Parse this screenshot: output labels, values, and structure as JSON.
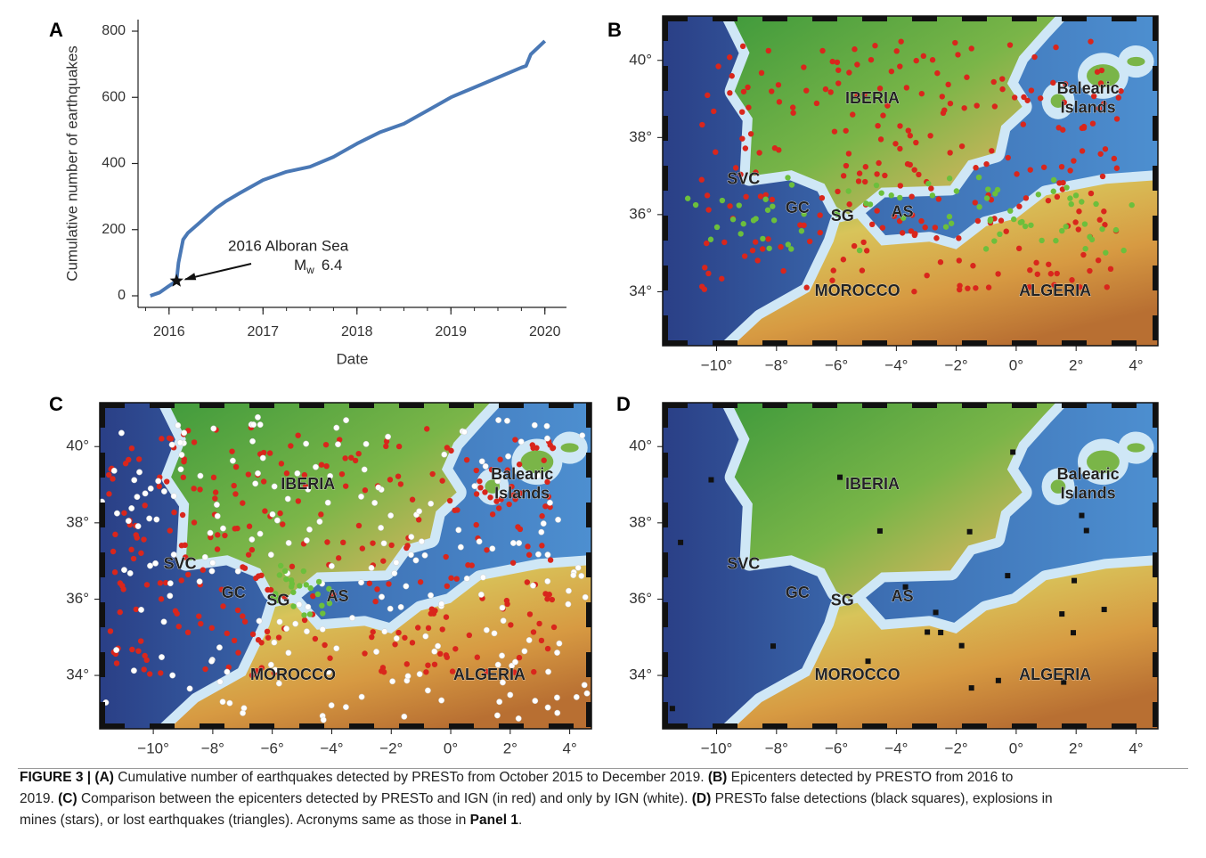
{
  "chart_data": {
    "type": "line",
    "panel": "A",
    "x": [
      2015.8,
      2015.9,
      2016.0,
      2016.08,
      2016.1,
      2016.15,
      2016.2,
      2016.3,
      2016.4,
      2016.5,
      2016.6,
      2016.75,
      2017.0,
      2017.25,
      2017.5,
      2017.75,
      2018.0,
      2018.25,
      2018.5,
      2018.75,
      2019.0,
      2019.25,
      2019.5,
      2019.75,
      2019.8,
      2019.85,
      2020.0
    ],
    "values": [
      0,
      10,
      30,
      45,
      100,
      170,
      190,
      215,
      240,
      265,
      285,
      310,
      350,
      375,
      390,
      420,
      460,
      495,
      520,
      560,
      600,
      630,
      660,
      690,
      695,
      730,
      770
    ],
    "color": "#4a78b5",
    "xlabel": "Date",
    "ylabel": "Cumulative number of earthquakes",
    "xlim": [
      2015.67,
      2020.23
    ],
    "ylim": [
      -35,
      835
    ],
    "xticks": [
      2016,
      2017,
      2018,
      2019,
      2020
    ],
    "yticks": [
      0,
      200,
      400,
      600,
      800
    ],
    "annotation": {
      "line1": "2016 Alboran Sea",
      "m": "M",
      "sub": "w",
      "mag": "6.4",
      "x": 2016.08,
      "y": 45
    }
  },
  "maps": {
    "panels": [
      "B",
      "C",
      "D"
    ],
    "xlim": [
      -11.8,
      4.73
    ],
    "ylim": [
      32.6,
      41.15
    ],
    "xticks": [
      {
        "value": -10,
        "label": "−10°"
      },
      {
        "value": -8,
        "label": "−8°"
      },
      {
        "value": -6,
        "label": "−6°"
      },
      {
        "value": -4,
        "label": "−4°"
      },
      {
        "value": -2,
        "label": "−2°"
      },
      {
        "value": 0,
        "label": "0°"
      },
      {
        "value": 2,
        "label": "2°"
      },
      {
        "value": 4,
        "label": "4°"
      }
    ],
    "yticks": [
      {
        "value": 34,
        "label": "34°"
      },
      {
        "value": 36,
        "label": "36°"
      },
      {
        "value": 38,
        "label": "38°"
      },
      {
        "value": 40,
        "label": "40°"
      }
    ],
    "labels": [
      {
        "text": "IBERIA",
        "lon": -4.8,
        "lat": 39.0
      },
      {
        "text": "Balearic",
        "lon": 2.4,
        "lat": 39.25
      },
      {
        "text": "Islands",
        "lon": 2.4,
        "lat": 38.75
      },
      {
        "text": "SVC",
        "lon": -9.1,
        "lat": 36.9
      },
      {
        "text": "GC",
        "lon": -7.3,
        "lat": 36.15
      },
      {
        "text": "SG",
        "lon": -5.8,
        "lat": 35.95
      },
      {
        "text": "AS",
        "lon": -3.8,
        "lat": 36.05
      },
      {
        "text": "MOROCCO",
        "lon": -5.3,
        "lat": 34.0
      },
      {
        "text": "ALGERIA",
        "lon": 1.3,
        "lat": 34.0
      }
    ]
  },
  "caption": {
    "lines": [
      [
        "FIGURE 3 | (A)",
        " Cumulative number of earthquakes detected by PRESTo from October 2015 to December 2019. ",
        "(B)",
        " Epicenters detected by PRESTO from 2016 to"
      ],
      [
        "2019. ",
        "(C)",
        " Comparison between the epicenters detected by PRESTo and IGN (in red) and only by IGN (white). ",
        "(D)",
        " PRESTo false detections (black squares), explosions in"
      ],
      [
        "mines (stars), or lost earthquakes (triangles). Acronyms same as those in ",
        "Panel 1",
        "."
      ]
    ]
  }
}
